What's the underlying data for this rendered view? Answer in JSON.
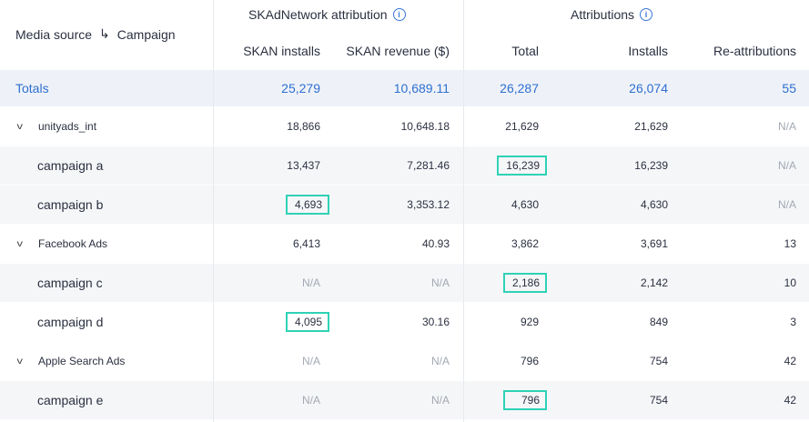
{
  "header": {
    "media_source": "Media source",
    "campaign": "Campaign",
    "skan_group": "SKAdNetwork attribution",
    "attr_group": "Attributions",
    "columns": [
      "SKAN installs",
      "SKAN revenue ($)",
      "Total",
      "Installs",
      "Re-attributions"
    ]
  },
  "totals": {
    "label": "Totals",
    "values": [
      "25,279",
      "10,689.11",
      "26,287",
      "26,074",
      "55"
    ]
  },
  "rows": [
    {
      "kind": "group",
      "label": "unityads_int",
      "values": [
        "18,866",
        "10,648.18",
        "21,629",
        "21,629",
        "N/A"
      ]
    },
    {
      "kind": "campaign",
      "label": "campaign a",
      "values": [
        "13,437",
        "7,281.46",
        "16,239",
        "16,239",
        "N/A"
      ]
    },
    {
      "kind": "campaign",
      "label": "campaign b",
      "values": [
        "4,693",
        "3,353.12",
        "4,630",
        "4,630",
        "N/A"
      ]
    },
    {
      "kind": "group",
      "label": "Facebook Ads",
      "values": [
        "6,413",
        "40.93",
        "3,862",
        "3,691",
        "13"
      ]
    },
    {
      "kind": "campaign",
      "label": "campaign c",
      "values": [
        "N/A",
        "N/A",
        "2,186",
        "2,142",
        "10"
      ]
    },
    {
      "kind": "campaign",
      "label": "campaign d",
      "values": [
        "4,095",
        "30.16",
        "929",
        "849",
        "3"
      ]
    },
    {
      "kind": "group",
      "label": "Apple Search Ads",
      "values": [
        "N/A",
        "N/A",
        "796",
        "754",
        "42"
      ]
    },
    {
      "kind": "campaign",
      "label": "campaign e",
      "values": [
        "N/A",
        "N/A",
        "796",
        "754",
        "42"
      ]
    }
  ],
  "colors": {
    "highlight": "#2fd2b6",
    "totals_text": "#2f6fd0",
    "totals_bg": "#eef2f8",
    "na_text": "#a3a8b4"
  },
  "icons": {
    "info": "info-icon",
    "arrow": "arrow-down-right-icon",
    "chevron": "chevron-down-icon"
  }
}
